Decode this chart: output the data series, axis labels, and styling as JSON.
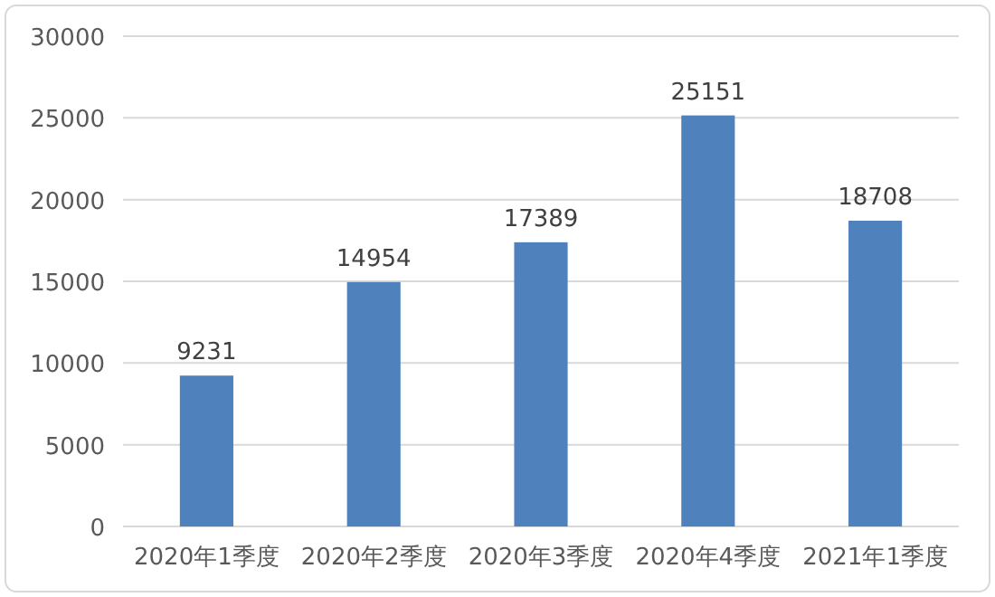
{
  "chart_data": {
    "type": "bar",
    "categories": [
      "2020年1季度",
      "2020年2季度",
      "2020年3季度",
      "2020年4季度",
      "2021年1季度"
    ],
    "values": [
      9231,
      14954,
      17389,
      25151,
      18708
    ],
    "color": "#4f81bd",
    "ylim": [
      0,
      30000
    ],
    "yticks": [
      0,
      5000,
      10000,
      15000,
      20000,
      25000,
      30000
    ],
    "grid": "y",
    "data_labels": true
  }
}
